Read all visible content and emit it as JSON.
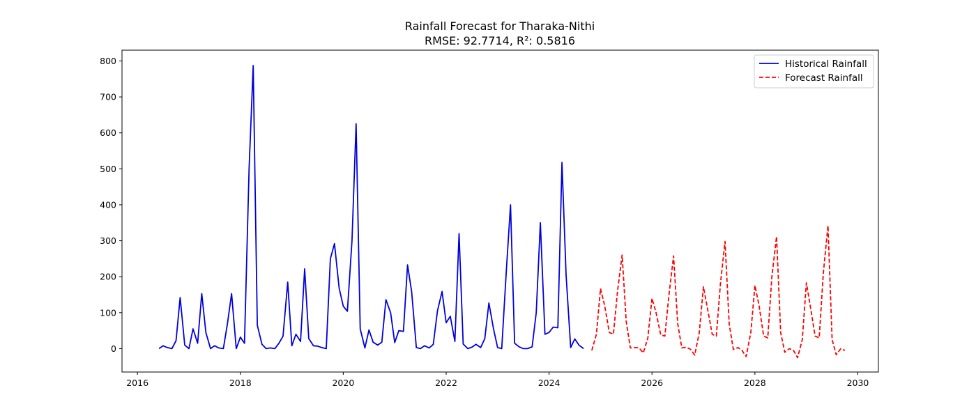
{
  "chart_data": {
    "type": "line",
    "title": "Rainfall Forecast for Tharaka-Nithi",
    "subtitle": "RMSE: 92.7714, R²: 0.5816",
    "xlabel": "",
    "ylabel": "",
    "xlim": [
      2015.7,
      2030.4
    ],
    "ylim": [
      -65,
      830
    ],
    "xticks": [
      2016,
      2018,
      2020,
      2022,
      2024,
      2026,
      2028,
      2030
    ],
    "yticks": [
      0,
      100,
      200,
      300,
      400,
      500,
      600,
      700,
      800
    ],
    "grid": false,
    "legend_position": "top-right",
    "series": [
      {
        "name": "Historical Rainfall",
        "color": "#0000dd",
        "style": "solid",
        "x": [
          2016.42,
          2016.5,
          2016.58,
          2016.67,
          2016.75,
          2016.83,
          2016.92,
          2017.0,
          2017.08,
          2017.17,
          2017.25,
          2017.33,
          2017.42,
          2017.5,
          2017.58,
          2017.67,
          2017.75,
          2017.83,
          2017.92,
          2018.0,
          2018.08,
          2018.17,
          2018.25,
          2018.33,
          2018.42,
          2018.5,
          2018.58,
          2018.67,
          2018.75,
          2018.83,
          2018.92,
          2019.0,
          2019.08,
          2019.17,
          2019.25,
          2019.33,
          2019.42,
          2019.5,
          2019.58,
          2019.67,
          2019.75,
          2019.83,
          2019.92,
          2020.0,
          2020.08,
          2020.17,
          2020.25,
          2020.33,
          2020.42,
          2020.5,
          2020.58,
          2020.67,
          2020.75,
          2020.83,
          2020.92,
          2021.0,
          2021.08,
          2021.17,
          2021.25,
          2021.33,
          2021.42,
          2021.5,
          2021.58,
          2021.67,
          2021.75,
          2021.83,
          2021.92,
          2022.0,
          2022.08,
          2022.17,
          2022.25,
          2022.33,
          2022.42,
          2022.5,
          2022.58,
          2022.67,
          2022.75,
          2022.83,
          2022.92,
          2023.0,
          2023.08,
          2023.17,
          2023.25,
          2023.33,
          2023.42,
          2023.5,
          2023.58,
          2023.67,
          2023.75,
          2023.83,
          2023.92,
          2024.0,
          2024.08,
          2024.17,
          2024.25,
          2024.33,
          2024.42,
          2024.5,
          2024.58,
          2024.67
        ],
        "values": [
          0,
          8,
          3,
          0,
          22,
          142,
          10,
          0,
          55,
          15,
          153,
          45,
          0,
          8,
          2,
          0,
          70,
          153,
          0,
          32,
          15,
          500,
          787,
          65,
          12,
          0,
          2,
          0,
          15,
          35,
          185,
          8,
          40,
          20,
          222,
          28,
          8,
          7,
          3,
          0,
          250,
          292,
          168,
          118,
          104,
          300,
          625,
          55,
          2,
          52,
          18,
          10,
          18,
          136,
          100,
          17,
          50,
          48,
          233,
          158,
          3,
          0,
          8,
          2,
          12,
          105,
          159,
          72,
          90,
          20,
          320,
          13,
          0,
          4,
          12,
          3,
          28,
          127,
          55,
          3,
          0,
          220,
          400,
          15,
          5,
          0,
          0,
          5,
          100,
          350,
          40,
          45,
          60,
          58,
          518,
          205,
          3,
          27,
          10,
          0
        ]
      },
      {
        "name": "Forecast Rainfall",
        "color": "#ff0000",
        "style": "dashed",
        "x": [
          2024.83,
          2024.92,
          2025.0,
          2025.08,
          2025.17,
          2025.25,
          2025.33,
          2025.42,
          2025.5,
          2025.58,
          2025.67,
          2025.75,
          2025.83,
          2025.92,
          2026.0,
          2026.08,
          2026.17,
          2026.25,
          2026.33,
          2026.42,
          2026.5,
          2026.58,
          2026.67,
          2026.75,
          2026.83,
          2026.92,
          2027.0,
          2027.08,
          2027.17,
          2027.25,
          2027.33,
          2027.42,
          2027.5,
          2027.58,
          2027.67,
          2027.75,
          2027.83,
          2027.92,
          2028.0,
          2028.08,
          2028.17,
          2028.25,
          2028.33,
          2028.42,
          2028.5,
          2028.58,
          2028.67,
          2028.75,
          2028.83,
          2028.92,
          2029.0,
          2029.08,
          2029.17,
          2029.25,
          2029.33,
          2029.42,
          2029.5,
          2029.58,
          2029.67,
          2029.75
        ],
        "values": [
          -5,
          40,
          167,
          120,
          45,
          40,
          160,
          260,
          75,
          2,
          3,
          2,
          -12,
          30,
          140,
          100,
          38,
          35,
          150,
          258,
          70,
          2,
          4,
          -2,
          -18,
          45,
          172,
          110,
          40,
          35,
          180,
          298,
          68,
          -2,
          3,
          -5,
          -22,
          45,
          176,
          120,
          35,
          30,
          200,
          312,
          45,
          -10,
          0,
          -5,
          -25,
          25,
          183,
          115,
          35,
          30,
          210,
          342,
          25,
          -17,
          0,
          -5
        ]
      }
    ]
  }
}
